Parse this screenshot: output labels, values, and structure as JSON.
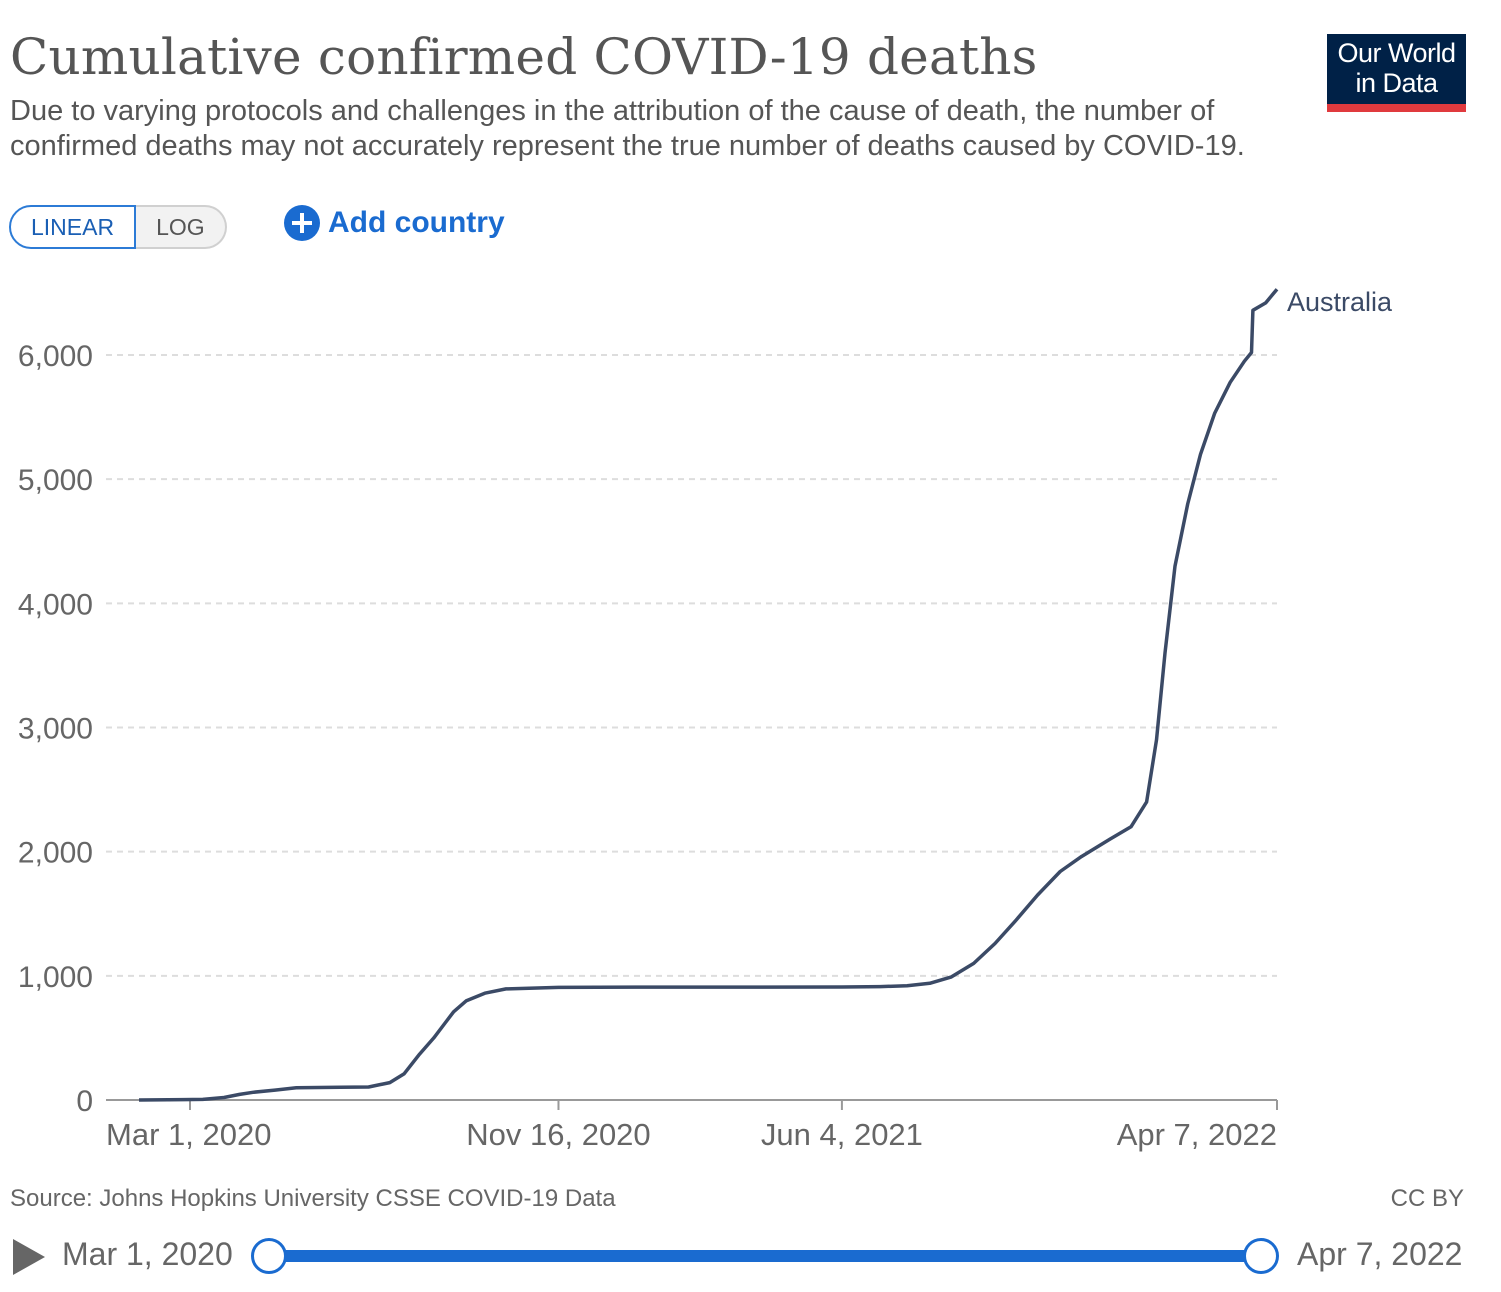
{
  "header": {
    "title": "Cumulative confirmed COVID-19 deaths",
    "subtitle": "Due to varying protocols and challenges in the attribution of the cause of death, the number of confirmed deaths may not accurately represent the true number of deaths caused by COVID-19.",
    "logo_line1": "Our World",
    "logo_line2": "in Data"
  },
  "controls": {
    "linear_label": "LINEAR",
    "log_label": "LOG",
    "add_country_label": "Add country",
    "add_icon": "plus-circle-icon"
  },
  "footer": {
    "source": "Source: Johns Hopkins University CSSE COVID-19 Data",
    "license": "CC BY"
  },
  "timeline": {
    "start_label": "Mar 1, 2020",
    "end_label": "Apr 7, 2022",
    "play_icon": "play-icon",
    "start_fraction": 0,
    "end_fraction": 1
  },
  "colors": {
    "line": "#3b4a66",
    "accent": "#1a6bd0",
    "logo_bg": "#002147",
    "logo_bar": "#e03a3e"
  },
  "chart_data": {
    "type": "line",
    "scale": "linear",
    "x_type": "date",
    "ylim": [
      0,
      6500
    ],
    "yticks": [
      0,
      1000,
      2000,
      3000,
      4000,
      5000,
      6000
    ],
    "ytick_labels": [
      "0",
      "1,000",
      "2,000",
      "3,000",
      "4,000",
      "5,000",
      "6,000"
    ],
    "xticks": [
      "2020-03-01",
      "2020-11-16",
      "2021-06-04",
      "2022-04-07"
    ],
    "xtick_labels": [
      "Mar 1, 2020",
      "Nov 16, 2020",
      "Jun 4, 2021",
      "Apr 7, 2022"
    ],
    "grid": "horizontal dashed",
    "series": [
      {
        "name": "Australia",
        "points": [
          [
            "2020-01-25",
            0
          ],
          [
            "2020-02-25",
            3
          ],
          [
            "2020-03-10",
            5
          ],
          [
            "2020-03-25",
            20
          ],
          [
            "2020-04-05",
            45
          ],
          [
            "2020-04-15",
            63
          ],
          [
            "2020-04-30",
            80
          ],
          [
            "2020-05-15",
            98
          ],
          [
            "2020-06-15",
            102
          ],
          [
            "2020-07-05",
            105
          ],
          [
            "2020-07-20",
            140
          ],
          [
            "2020-07-30",
            210
          ],
          [
            "2020-08-10",
            370
          ],
          [
            "2020-08-20",
            500
          ],
          [
            "2020-08-28",
            620
          ],
          [
            "2020-09-03",
            710
          ],
          [
            "2020-09-12",
            800
          ],
          [
            "2020-09-25",
            860
          ],
          [
            "2020-10-10",
            895
          ],
          [
            "2020-11-16",
            907
          ],
          [
            "2021-01-15",
            909
          ],
          [
            "2021-03-15",
            909
          ],
          [
            "2021-06-04",
            910
          ],
          [
            "2021-07-01",
            913
          ],
          [
            "2021-07-20",
            920
          ],
          [
            "2021-08-05",
            940
          ],
          [
            "2021-08-20",
            990
          ],
          [
            "2021-09-05",
            1100
          ],
          [
            "2021-09-20",
            1260
          ],
          [
            "2021-10-05",
            1450
          ],
          [
            "2021-10-20",
            1650
          ],
          [
            "2021-11-05",
            1840
          ],
          [
            "2021-11-20",
            1960
          ],
          [
            "2021-12-10",
            2100
          ],
          [
            "2021-12-25",
            2200
          ],
          [
            "2022-01-05",
            2400
          ],
          [
            "2022-01-12",
            2900
          ],
          [
            "2022-01-18",
            3600
          ],
          [
            "2022-01-25",
            4300
          ],
          [
            "2022-02-03",
            4800
          ],
          [
            "2022-02-12",
            5200
          ],
          [
            "2022-02-22",
            5530
          ],
          [
            "2022-03-05",
            5780
          ],
          [
            "2022-03-15",
            5950
          ],
          [
            "2022-03-20",
            6020
          ],
          [
            "2022-03-21",
            6360
          ],
          [
            "2022-03-30",
            6420
          ],
          [
            "2022-04-07",
            6530
          ]
        ]
      }
    ]
  }
}
